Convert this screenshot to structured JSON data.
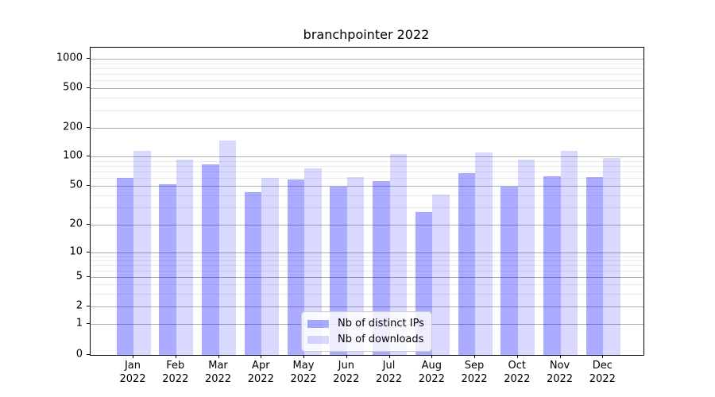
{
  "chart_data": {
    "type": "bar",
    "title": "branchpointer 2022",
    "categories": [
      {
        "month": "Jan",
        "year": "2022"
      },
      {
        "month": "Feb",
        "year": "2022"
      },
      {
        "month": "Mar",
        "year": "2022"
      },
      {
        "month": "Apr",
        "year": "2022"
      },
      {
        "month": "May",
        "year": "2022"
      },
      {
        "month": "Jun",
        "year": "2022"
      },
      {
        "month": "Jul",
        "year": "2022"
      },
      {
        "month": "Aug",
        "year": "2022"
      },
      {
        "month": "Sep",
        "year": "2022"
      },
      {
        "month": "Oct",
        "year": "2022"
      },
      {
        "month": "Nov",
        "year": "2022"
      },
      {
        "month": "Dec",
        "year": "2022"
      }
    ],
    "series": [
      {
        "name": "Nb of distinct IPs",
        "color": "rgba(0,0,255,0.33)",
        "values": [
          60,
          52,
          83,
          43,
          58,
          49,
          56,
          27,
          67,
          49,
          63,
          61
        ]
      },
      {
        "name": "Nb of downloads",
        "color": "rgba(0,0,255,0.15)",
        "values": [
          115,
          92,
          148,
          60,
          75,
          61,
          107,
          41,
          110,
          93,
          115,
          97
        ]
      }
    ],
    "yscale": "symlog",
    "ytick_labels": [
      "0",
      "1",
      "2",
      "5",
      "10",
      "20",
      "50",
      "100",
      "200",
      "500",
      "1000"
    ],
    "minor_grid_values": [
      3,
      4,
      6,
      7,
      8,
      9,
      30,
      40,
      60,
      70,
      80,
      90,
      300,
      400,
      600,
      700,
      800,
      900
    ],
    "ylim": [
      0,
      1300
    ],
    "grid": true,
    "legend_position": "lower center",
    "colors": {
      "major_grid": "#b0b0b0",
      "minor_grid": "#eaeaea",
      "axis": "#000000",
      "background": "#ffffff"
    }
  }
}
